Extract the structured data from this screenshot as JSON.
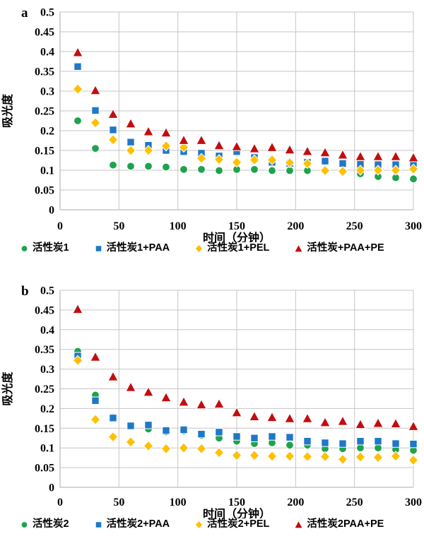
{
  "page": {
    "background": "#FFFFFF",
    "grid_color": "#C6C6C6",
    "axis_color": "#ABABAB",
    "text_color": "#000000"
  },
  "chart_data": [
    {
      "panel_label": "a",
      "type": "scatter",
      "title": "",
      "xlabel": "时间（分钟）",
      "ylabel": "吸光度",
      "xlim": [
        0,
        300
      ],
      "ylim": [
        0,
        0.5
      ],
      "x_ticks": [
        0,
        50,
        100,
        150,
        200,
        250,
        300
      ],
      "y_ticks": [
        "0",
        "0.05",
        "0.1",
        "0.15",
        "0.2",
        "0.25",
        "0.3",
        "0.35",
        "0.4",
        "0.45",
        "0.5"
      ],
      "grid": true,
      "legend_position": "bottom",
      "x": [
        15,
        30,
        45,
        60,
        75,
        90,
        105,
        120,
        135,
        150,
        165,
        180,
        195,
        210,
        225,
        240,
        255,
        270,
        285,
        300
      ],
      "series": [
        {
          "name": "活性炭1",
          "marker": "circle",
          "color": "#1FA24E",
          "values": [
            0.225,
            0.155,
            0.113,
            0.11,
            0.11,
            0.108,
            0.102,
            0.102,
            0.099,
            0.102,
            0.102,
            0.099,
            0.099,
            0.099,
            0.099,
            0.096,
            0.091,
            0.084,
            0.081,
            0.078
          ]
        },
        {
          "name": "活性炭1+PAA",
          "marker": "square",
          "color": "#1E78C8",
          "values": [
            0.362,
            0.251,
            0.202,
            0.171,
            0.163,
            0.15,
            0.147,
            0.143,
            0.136,
            0.147,
            0.132,
            0.12,
            0.117,
            0.12,
            0.123,
            0.117,
            0.115,
            0.114,
            0.114,
            0.113
          ]
        },
        {
          "name": "活性炭1+PEL",
          "marker": "diamond",
          "color": "#FFC000",
          "values": [
            0.305,
            0.22,
            0.177,
            0.15,
            0.15,
            0.161,
            0.158,
            0.13,
            0.127,
            0.12,
            0.126,
            0.126,
            0.119,
            0.117,
            0.099,
            0.097,
            0.1,
            0.1,
            0.1,
            0.103
          ]
        },
        {
          "name": "活性炭+PAA+PE",
          "marker": "triangle",
          "color": "#C30D10",
          "values": [
            0.398,
            0.302,
            0.242,
            0.218,
            0.198,
            0.195,
            0.176,
            0.176,
            0.163,
            0.16,
            0.155,
            0.158,
            0.152,
            0.148,
            0.145,
            0.139,
            0.135,
            0.135,
            0.135,
            0.132
          ]
        }
      ]
    },
    {
      "panel_label": "b",
      "type": "scatter",
      "title": "",
      "xlabel": "时间（分钟）",
      "ylabel": "吸光度",
      "xlim": [
        0,
        300
      ],
      "ylim": [
        0,
        0.5
      ],
      "x_ticks": [
        0,
        50,
        100,
        150,
        200,
        250,
        300
      ],
      "y_ticks": [
        "0",
        "0.05",
        "0.1",
        "0.15",
        "0.2",
        "0.25",
        "0.3",
        "0.35",
        "0.4",
        "0.45",
        "0.5"
      ],
      "grid": true,
      "legend_position": "bottom",
      "x": [
        15,
        30,
        45,
        60,
        75,
        90,
        105,
        120,
        135,
        150,
        165,
        180,
        195,
        210,
        225,
        240,
        255,
        270,
        285,
        300
      ],
      "series": [
        {
          "name": "活性炭2",
          "marker": "circle",
          "color": "#1FA24E",
          "values": [
            0.345,
            0.234,
            0.178,
            0.155,
            0.148,
            0.141,
            0.143,
            0.132,
            0.125,
            0.117,
            0.111,
            0.113,
            0.107,
            0.107,
            0.098,
            0.098,
            0.1,
            0.1,
            0.096,
            0.094
          ]
        },
        {
          "name": "活性炭2+PAA",
          "marker": "square",
          "color": "#1E78C8",
          "values": [
            0.333,
            0.22,
            0.176,
            0.156,
            0.158,
            0.144,
            0.146,
            0.135,
            0.14,
            0.129,
            0.125,
            0.129,
            0.127,
            0.117,
            0.113,
            0.111,
            0.117,
            0.117,
            0.111,
            0.11
          ]
        },
        {
          "name": "活性炭2+PEL",
          "marker": "diamond",
          "color": "#FFC000",
          "values": [
            0.322,
            0.172,
            0.128,
            0.115,
            0.105,
            0.098,
            0.1,
            0.098,
            0.088,
            0.081,
            0.081,
            0.079,
            0.079,
            0.078,
            0.078,
            0.071,
            0.077,
            0.076,
            0.079,
            0.069
          ]
        },
        {
          "name": "活性炭2PAA+PE",
          "marker": "triangle",
          "color": "#C30D10",
          "values": [
            0.452,
            0.331,
            0.281,
            0.254,
            0.242,
            0.228,
            0.217,
            0.21,
            0.212,
            0.19,
            0.18,
            0.178,
            0.175,
            0.175,
            0.165,
            0.168,
            0.16,
            0.163,
            0.162,
            0.155
          ]
        }
      ]
    }
  ]
}
